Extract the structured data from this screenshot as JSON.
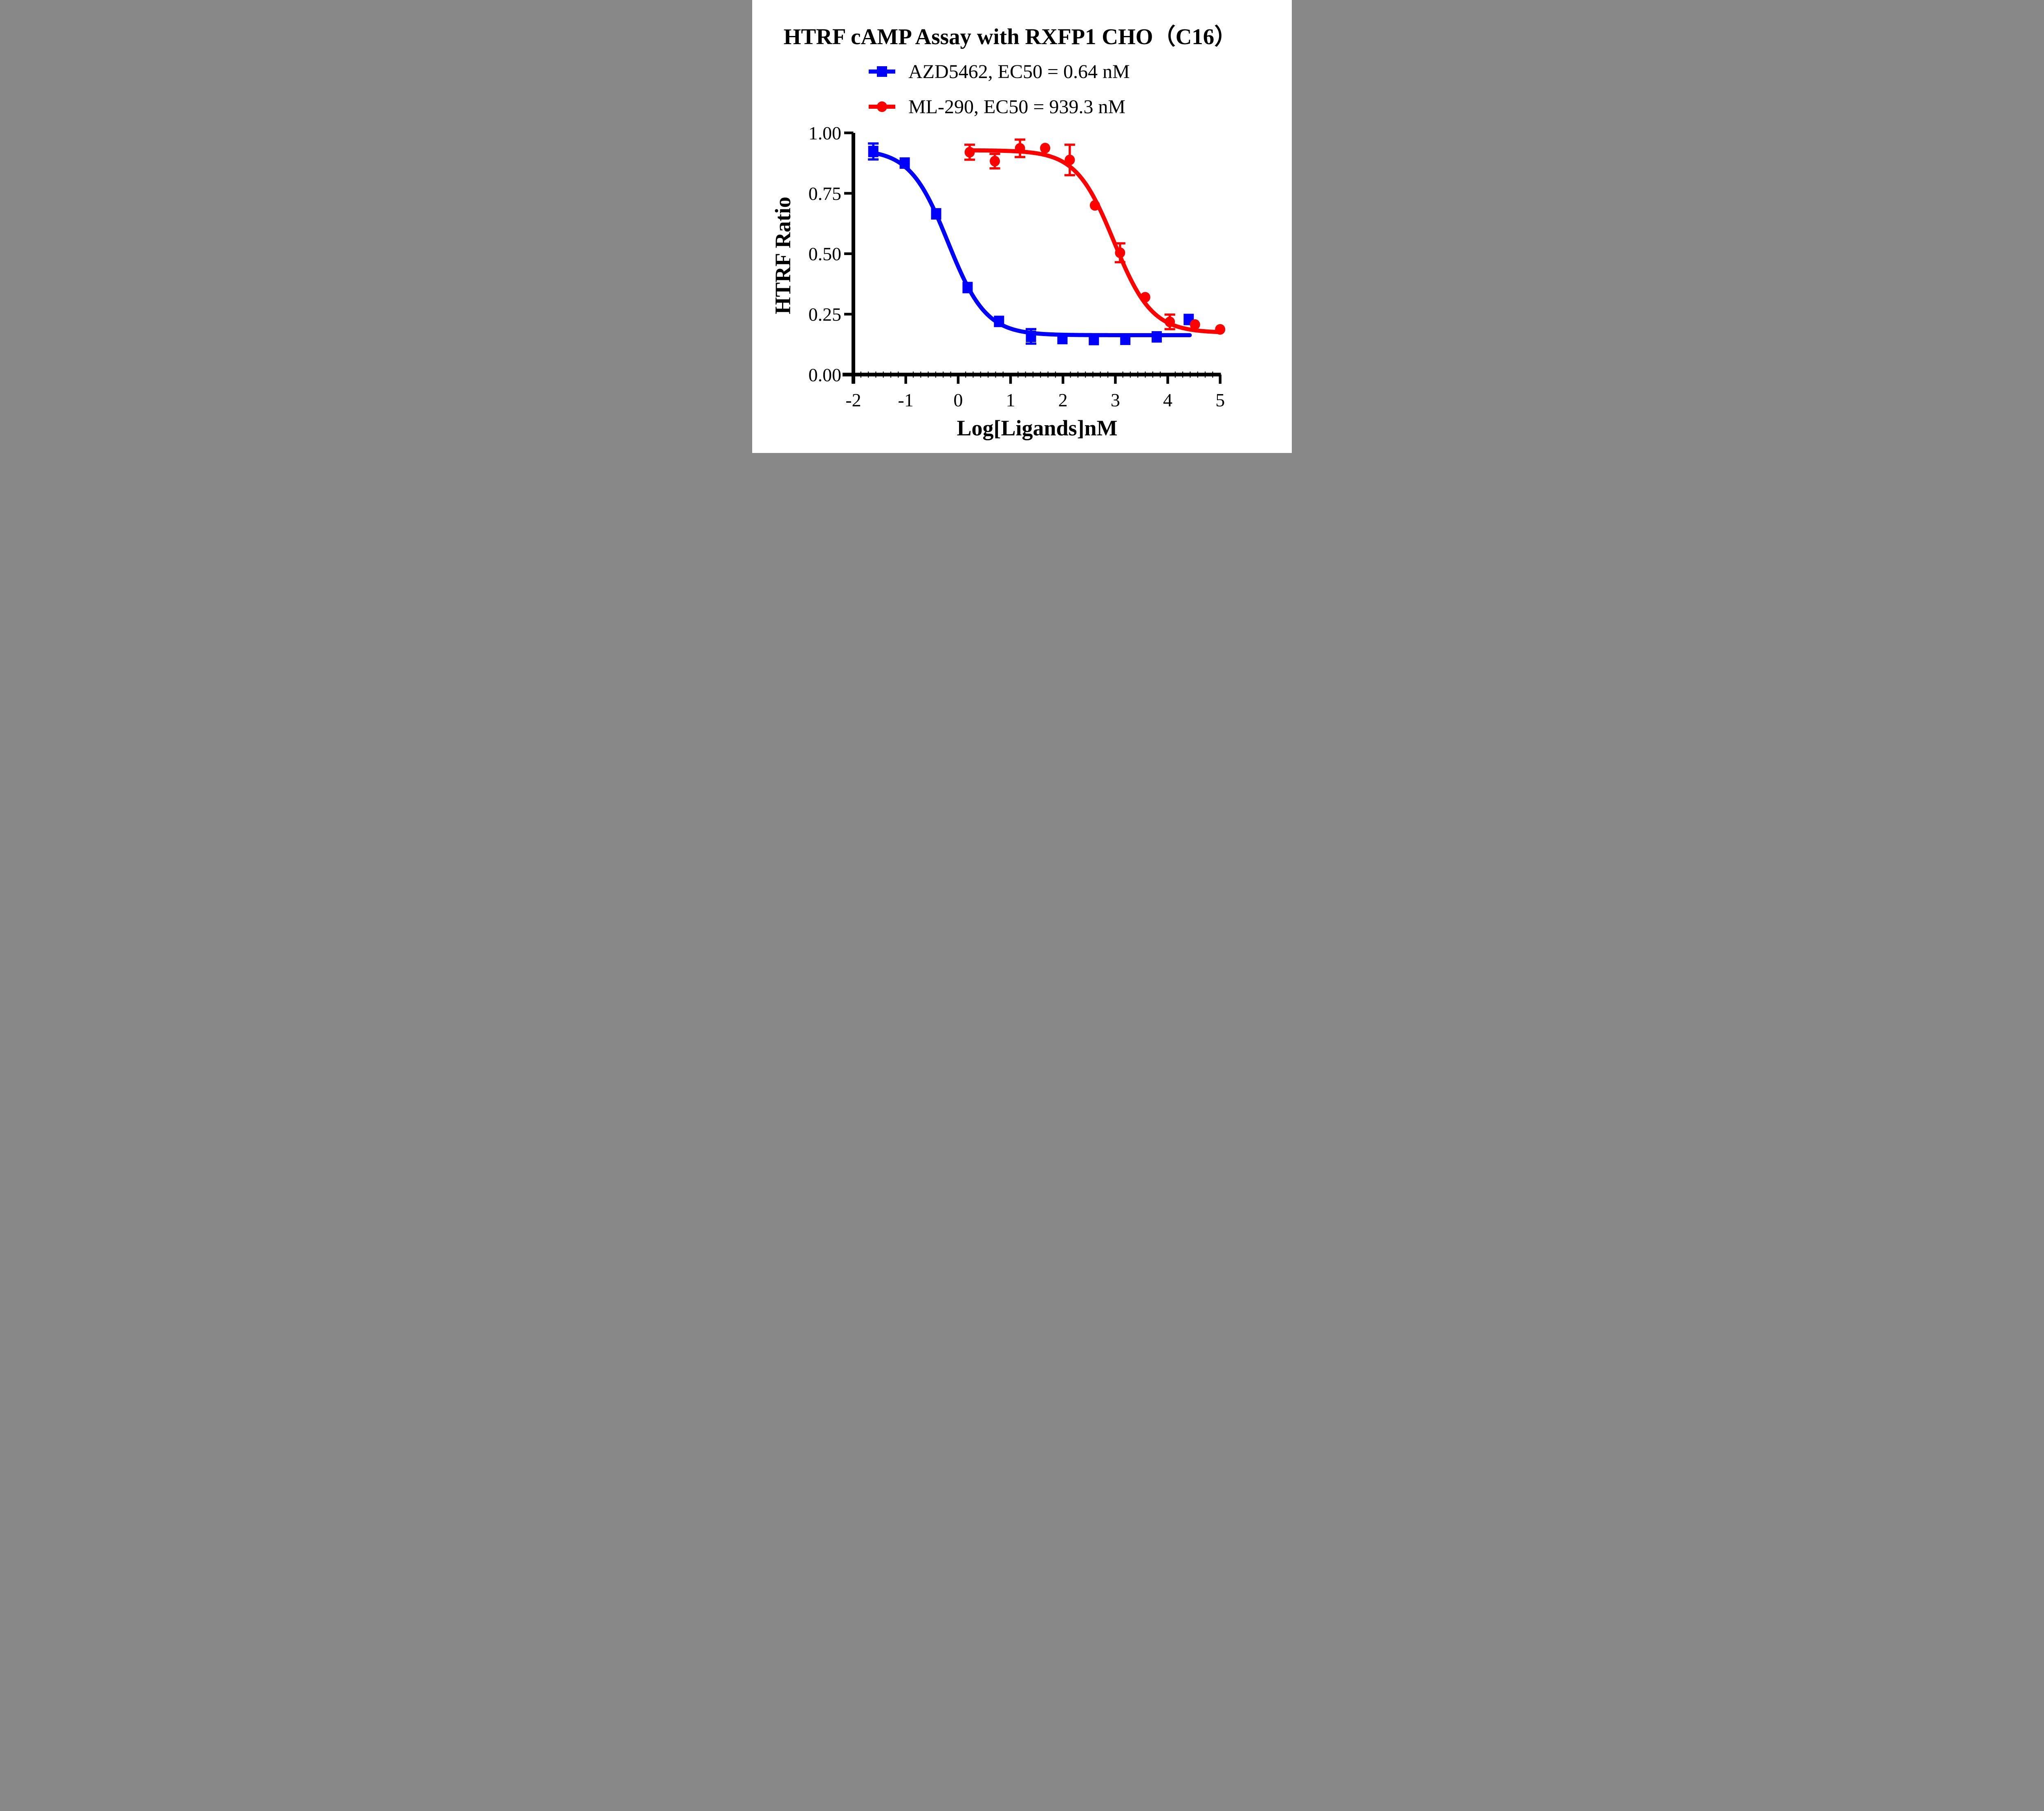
{
  "chart_data": {
    "type": "line",
    "title": "HTRF cAMP Assay with RXFP1 CHO（C16）",
    "xlabel": "Log[Ligands]nM",
    "ylabel": "HTRF Ratio",
    "xlim": [
      -2,
      5
    ],
    "ylim": [
      0,
      1
    ],
    "x_tick_values": [
      -2,
      -1,
      0,
      1,
      2,
      3,
      4,
      5
    ],
    "x_tick_labels": [
      "-2",
      "-1",
      "0",
      "1",
      "2",
      "3",
      "4",
      "5"
    ],
    "y_tick_values": [
      0,
      0.25,
      0.5,
      0.75,
      1
    ],
    "y_tick_labels": [
      "0.00",
      "0.25",
      "0.50",
      "0.75",
      "1.00"
    ],
    "grid": false,
    "legend_position": "top-left",
    "axis_color": "#000000",
    "background_color": "#ffffff",
    "series": [
      {
        "name": "AZD5462, EC50 = 0.64 nM",
        "color": "#0000ff",
        "marker": "square",
        "ec50_label": "0.64 nM",
        "points": [
          {
            "x": -1.62,
            "y": 0.923,
            "err": 0.033
          },
          {
            "x": -1.02,
            "y": 0.875,
            "err": 0
          },
          {
            "x": -0.42,
            "y": 0.665,
            "err": 0
          },
          {
            "x": 0.18,
            "y": 0.36,
            "err": 0
          },
          {
            "x": 0.78,
            "y": 0.22,
            "err": 0
          },
          {
            "x": 1.39,
            "y": 0.158,
            "err": 0.03
          },
          {
            "x": 1.99,
            "y": 0.149,
            "err": 0
          },
          {
            "x": 2.59,
            "y": 0.145,
            "err": 0
          },
          {
            "x": 3.19,
            "y": 0.146,
            "err": 0
          },
          {
            "x": 3.79,
            "y": 0.156,
            "err": 0
          },
          {
            "x": 4.4,
            "y": 0.228,
            "err": 0
          }
        ],
        "fit": {
          "top": 0.932,
          "bottom": 0.163,
          "logEC50": -0.194,
          "hill": 1.2,
          "x_start": -1.62,
          "x_end": 4.42
        }
      },
      {
        "name": "ML-290, EC50 = 939.3 nM",
        "color": "#ff0000",
        "marker": "circle",
        "ec50_label": "939.3 nM",
        "points": [
          {
            "x": 0.22,
            "y": 0.92,
            "err": 0.031
          },
          {
            "x": 0.7,
            "y": 0.883,
            "err": 0.03
          },
          {
            "x": 1.18,
            "y": 0.936,
            "err": 0.036
          },
          {
            "x": 1.66,
            "y": 0.937,
            "err": 0
          },
          {
            "x": 2.13,
            "y": 0.888,
            "err": 0.063
          },
          {
            "x": 2.61,
            "y": 0.7,
            "err": 0
          },
          {
            "x": 3.09,
            "y": 0.504,
            "err": 0.039
          },
          {
            "x": 3.57,
            "y": 0.32,
            "err": 0
          },
          {
            "x": 4.04,
            "y": 0.218,
            "err": 0.03
          },
          {
            "x": 4.52,
            "y": 0.207,
            "err": 0
          },
          {
            "x": 5.0,
            "y": 0.187,
            "err": 0
          }
        ],
        "fit": {
          "top": 0.928,
          "bottom": 0.173,
          "logEC50": 2.973,
          "hill": 1.2,
          "x_start": 0.2,
          "x_end": 5.0
        }
      }
    ]
  }
}
